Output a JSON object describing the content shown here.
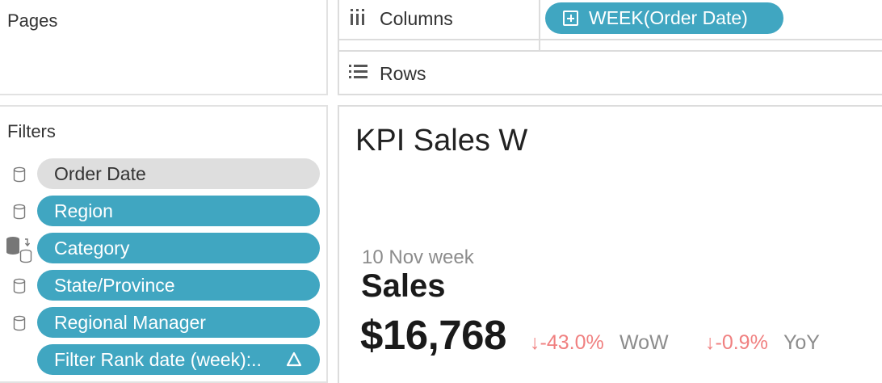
{
  "pages": {
    "title": "Pages"
  },
  "shelves": {
    "columns": {
      "label": "Columns",
      "pill": "WEEK(Order Date)"
    },
    "rows": {
      "label": "Rows"
    }
  },
  "filters": {
    "title": "Filters",
    "items": [
      {
        "label": "Order Date",
        "style": "grey",
        "icon": "database-icon"
      },
      {
        "label": "Region",
        "style": "blue",
        "icon": "database-icon"
      },
      {
        "label": "Category",
        "style": "blue",
        "icon": "linked-database-icon"
      },
      {
        "label": "State/Province",
        "style": "blue",
        "icon": "database-icon"
      },
      {
        "label": "Regional Manager",
        "style": "blue",
        "icon": "database-icon"
      },
      {
        "label": "Filter Rank date (week):..",
        "style": "blue",
        "icon": "delta-icon"
      }
    ]
  },
  "view": {
    "title": "KPI Sales W",
    "week_label": "10 Nov week",
    "measure": "Sales",
    "value": "$16,768",
    "wow": {
      "value": "-43.0%",
      "label": "WoW",
      "arrow": "↓"
    },
    "yoy": {
      "value": "-0.9%",
      "label": "YoY",
      "arrow": "↓"
    }
  },
  "colors": {
    "pill_blue": "#40a6c1",
    "pill_grey": "#dedede",
    "negative": "#f08080",
    "muted": "#8c8c8c"
  }
}
